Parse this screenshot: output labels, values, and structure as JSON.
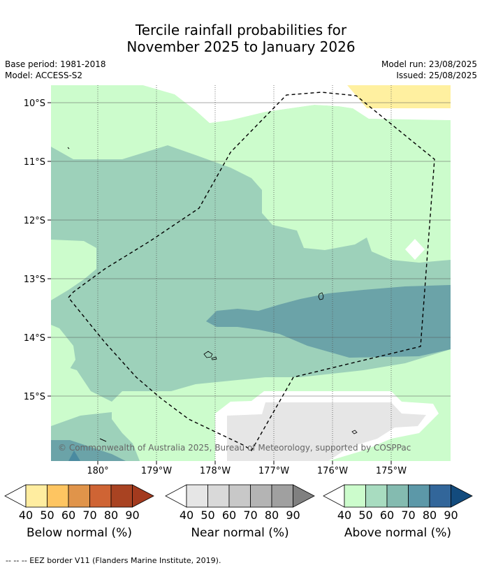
{
  "header": {
    "title_line1": "Tercile rainfall probabilities for",
    "title_line2": "November 2025 to January 2026",
    "base_period": "Base period: 1981-2018",
    "model": "Model: ACCESS-S2",
    "model_run": "Model run: 23/08/2025",
    "issued": "Issued: 25/08/2025"
  },
  "map": {
    "lat_labels": [
      "10°S",
      "11°S",
      "12°S",
      "13°S",
      "14°S",
      "15°S"
    ],
    "lon_labels": [
      "180°",
      "179°W",
      "178°W",
      "177°W",
      "176°W",
      "175°W"
    ],
    "copyright": "© Commonwealth of Australia 2025, Bureau of Meteorology, supported by COSPPac",
    "colors": {
      "above_40": "#ccfccc",
      "above_50": "#9dd1ba",
      "above_60": "#6ba3a8",
      "above_70": "#4a8aa0",
      "near_40": "#e6e6e6",
      "below_40": "#fff0a0",
      "eez": "#000000"
    }
  },
  "colorbars": [
    {
      "name": "Below normal (%)",
      "ticks": [
        "40",
        "50",
        "60",
        "70",
        "80",
        "90"
      ],
      "colors": [
        "#ffeda0",
        "#fec561",
        "#e0944a",
        "#cf6434",
        "#a94322",
        "#8b2e14"
      ]
    },
    {
      "name": "Near normal (%)",
      "ticks": [
        "40",
        "50",
        "60",
        "70",
        "80",
        "90"
      ],
      "colors": [
        "#e6e6e6",
        "#d9d9d9",
        "#c8c8c8",
        "#b4b4b4",
        "#a0a0a0",
        "#808080"
      ]
    },
    {
      "name": "Above normal (%)",
      "ticks": [
        "40",
        "50",
        "60",
        "70",
        "80",
        "90"
      ],
      "colors": [
        "#ccfccc",
        "#a8dcc0",
        "#84bbb0",
        "#5c98a8",
        "#32669a",
        "#134b7d"
      ]
    }
  ],
  "footnote": "--  --  -- EEZ border V11 (Flanders Marine Institute, 2019)."
}
